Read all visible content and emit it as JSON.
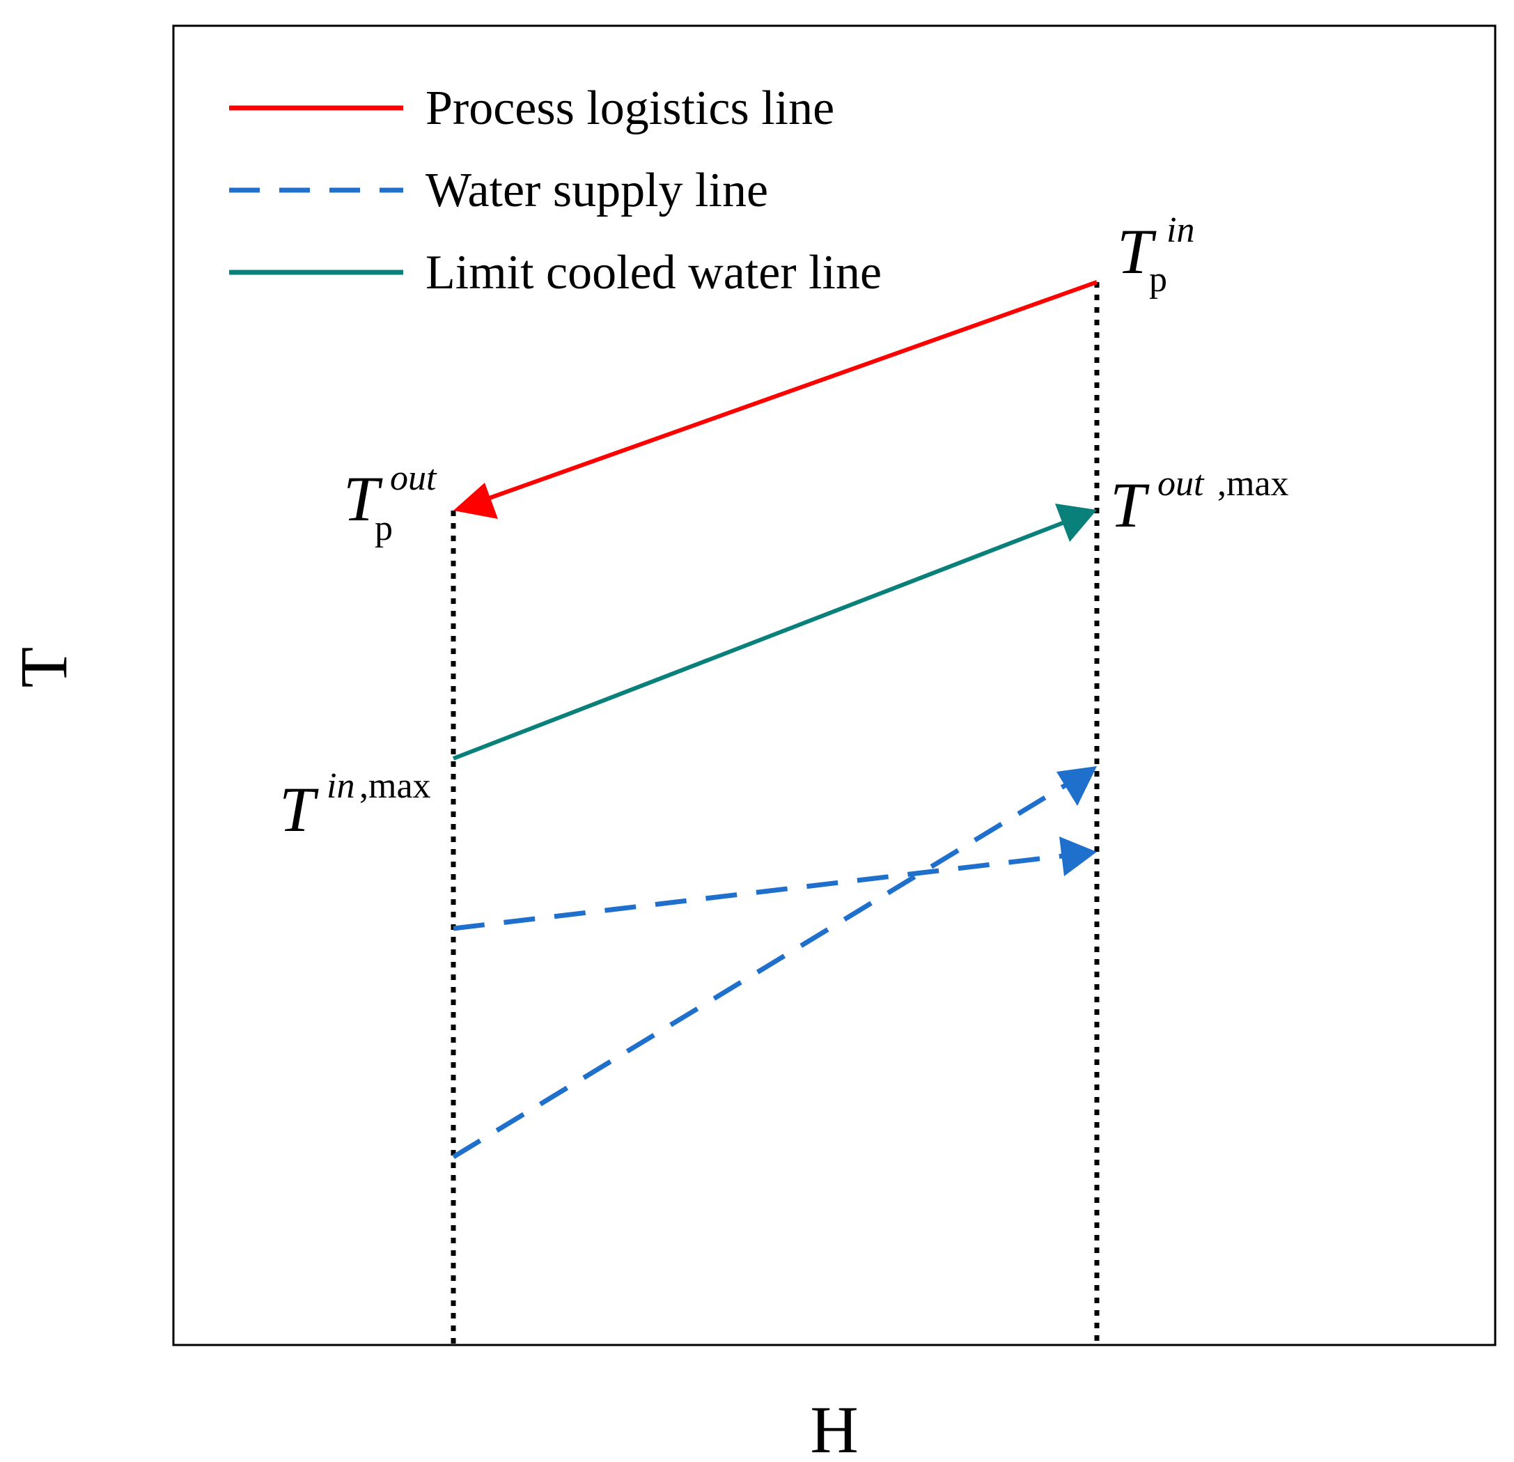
{
  "figure": {
    "axis_x_label": "H",
    "axis_y_label": "T"
  },
  "legend": {
    "items": [
      {
        "label": "Process logistics line",
        "style": "solid",
        "color": "#ff0000"
      },
      {
        "label": "Water supply line",
        "style": "dashed",
        "color": "#1f6fcc"
      },
      {
        "label": "Limit cooled water line",
        "style": "solid",
        "color": "#0a807a"
      }
    ]
  },
  "annotations": {
    "tp_in": {
      "base": "T",
      "sup": "in",
      "sub": "p"
    },
    "tp_out": {
      "base": "T",
      "sup": "out",
      "sub": "p"
    },
    "t_out_max": {
      "base": "T",
      "sup": "out",
      "sup_suffix": ",max"
    },
    "t_in_max": {
      "base": "T",
      "sup": "in",
      "sup_suffix": ",max"
    }
  },
  "colors": {
    "process": "#ff0000",
    "water": "#1f6fcc",
    "limit": "#0a807a",
    "guide": "#000000"
  }
}
